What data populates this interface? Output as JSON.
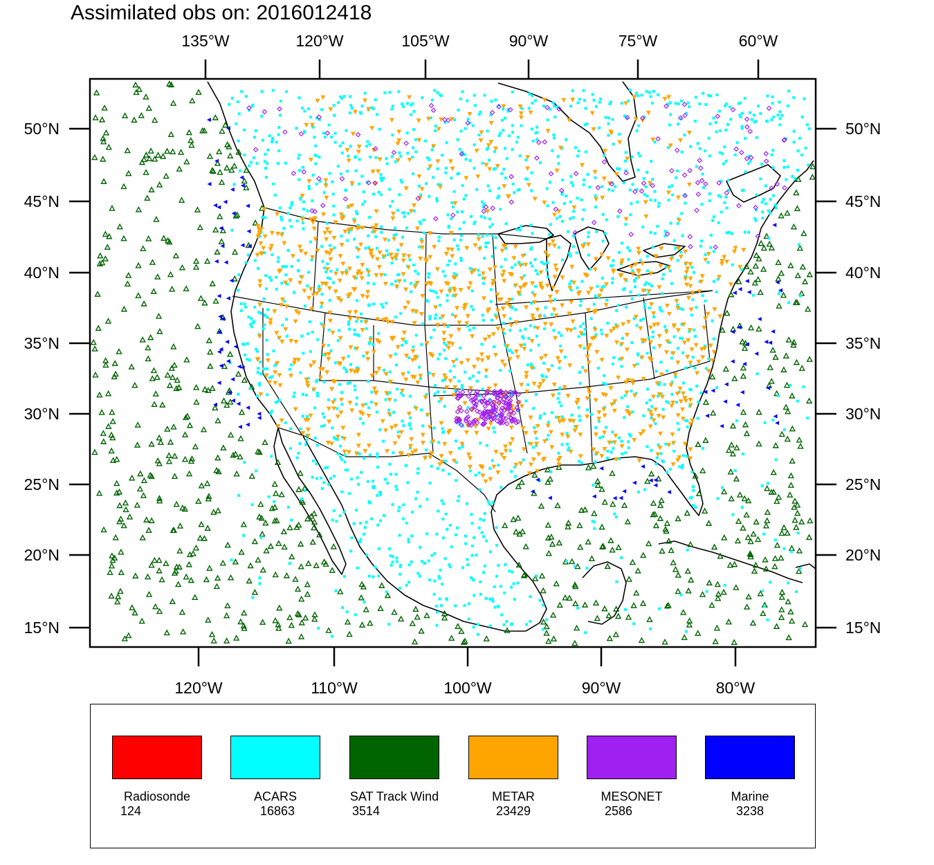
{
  "title": "Assimilated obs on: 2016012418",
  "top_axis_labels": [
    "135°W",
    "120°W",
    "105°W",
    "90°W",
    "75°W",
    "60°W"
  ],
  "bottom_axis_labels": [
    "120°W",
    "110°W",
    "100°W",
    "90°W",
    "80°W"
  ],
  "lat_labels": [
    "50°N",
    "45°N",
    "40°N",
    "35°N",
    "30°N",
    "25°N",
    "20°N",
    "15°N"
  ],
  "legend": [
    {
      "name": "Radiosonde",
      "count": "124",
      "color": "#ff0000"
    },
    {
      "name": "ACARS",
      "count": "16863",
      "color": "#00ffff"
    },
    {
      "name": "SAT Track Wind",
      "count": "3514",
      "color": "#006400"
    },
    {
      "name": "METAR",
      "count": "23429",
      "color": "#ffa500"
    },
    {
      "name": "MESONET",
      "count": "2586",
      "color": "#a020f0"
    },
    {
      "name": "Marine",
      "count": "3238",
      "color": "#0000ff"
    }
  ],
  "colors": {
    "acars": "#00ffff",
    "sat_track_wind": "#006400",
    "metar": "#ffa500",
    "mesonet": "#a020f0",
    "marine": "#0000ff",
    "coastline": "#000000"
  }
}
